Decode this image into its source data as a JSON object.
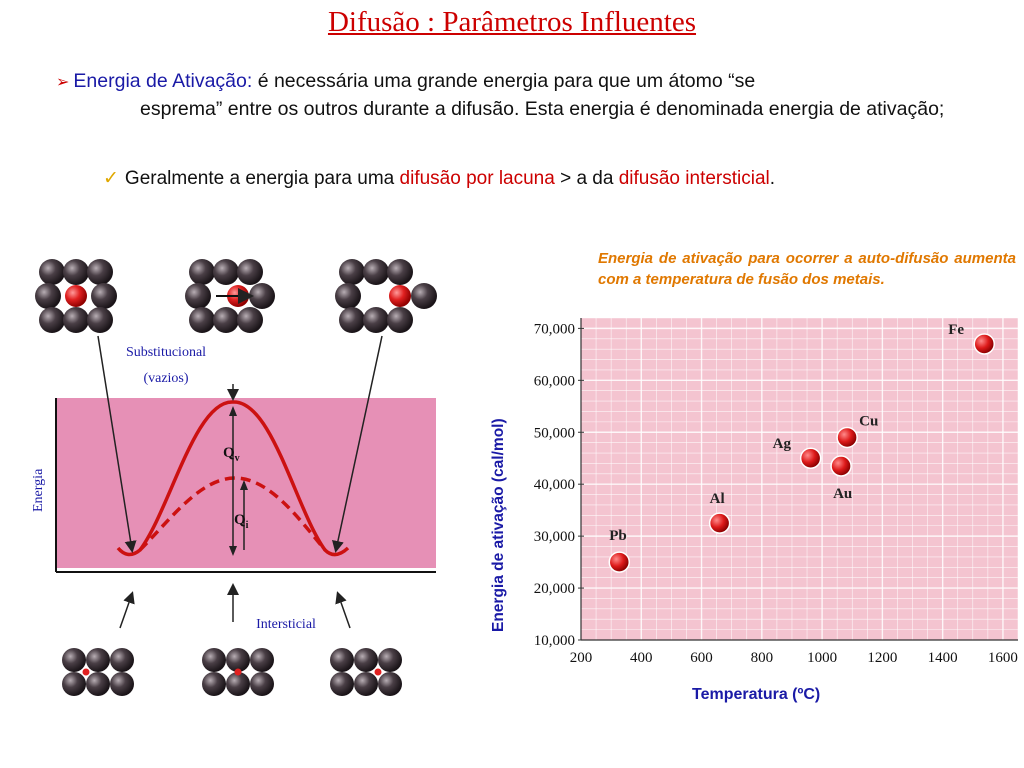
{
  "title": "Difusão : Parâmetros Influentes",
  "bullet1": {
    "arrow": "➢",
    "term": "Energia de Ativação:",
    "text_line1": " é necessária uma grande energia para que um átomo “se",
    "text_line2": "esprema” entre os outros durante a difusão. Esta energia é denominada energia de ativação;"
  },
  "bullet2": {
    "check": "✓",
    "pre": "Geralmente a energia para uma ",
    "red1": "difusão por lacuna",
    "mid": " > a da ",
    "red2": "difusão intersticial",
    "post": "."
  },
  "diagram": {
    "label_substitucional": "Substitucional",
    "label_vazios": "(vazios)",
    "label_energia": "Energia",
    "label_intersticial": "Intersticial",
    "label_qv": "Q",
    "label_qv_sub": "v",
    "label_qi": "Q",
    "label_qi_sub": "i",
    "colors": {
      "panel": "#e48fb4",
      "curve": "#cc1111",
      "atom": "#3a3036",
      "vacancy_atom": "#dd2222"
    }
  },
  "chart_caption": "Energia de ativação para ocorrer a auto-difusão aumenta com a temperatura de fusão dos metais.",
  "chart_data": {
    "type": "scatter",
    "xlabel": "Temperatura (ºC)",
    "ylabel": "Energia de ativação (cal/mol)",
    "xlim": [
      200,
      1650
    ],
    "ylim": [
      10000,
      72000
    ],
    "xticks": [
      "200",
      "400",
      "600",
      "800",
      "1000",
      "1200",
      "1400",
      "1600"
    ],
    "yticks": [
      "10,000",
      "20,000",
      "30,000",
      "40,000",
      "50,000",
      "60,000",
      "70,000"
    ],
    "points": [
      {
        "label": "Pb",
        "x": 327,
        "y": 25000
      },
      {
        "label": "Al",
        "x": 660,
        "y": 32500
      },
      {
        "label": "Ag",
        "x": 962,
        "y": 45000
      },
      {
        "label": "Au",
        "x": 1063,
        "y": 43500
      },
      {
        "label": "Cu",
        "x": 1083,
        "y": 49000
      },
      {
        "label": "Fe",
        "x": 1538,
        "y": 67000
      }
    ],
    "grid": true,
    "colors": {
      "background": "#f4c4d0",
      "grid": "#ffffff",
      "point": "#dd1a1a"
    }
  }
}
